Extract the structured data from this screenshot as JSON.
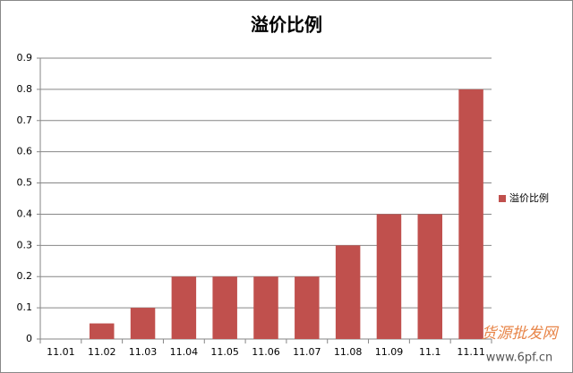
{
  "chart_data": {
    "type": "bar",
    "title": "溢价比例",
    "categories": [
      "11.01",
      "11.02",
      "11.03",
      "11.04",
      "11.05",
      "11.06",
      "11.07",
      "11.08",
      "11.09",
      "11.1",
      "11.11"
    ],
    "series": [
      {
        "name": "溢价比例",
        "color": "#c0504d",
        "values": [
          0,
          0.05,
          0.1,
          0.2,
          0.2,
          0.2,
          0.2,
          0.3,
          0.4,
          0.4,
          0.8
        ]
      }
    ],
    "ylim": [
      0,
      0.9
    ],
    "yticks": [
      0,
      0.1,
      0.2,
      0.3,
      0.4,
      0.5,
      0.6,
      0.7,
      0.8,
      0.9
    ],
    "grid": true,
    "legend": "right",
    "watermark": [
      "货源批发网",
      "www.6pf.cn"
    ]
  }
}
